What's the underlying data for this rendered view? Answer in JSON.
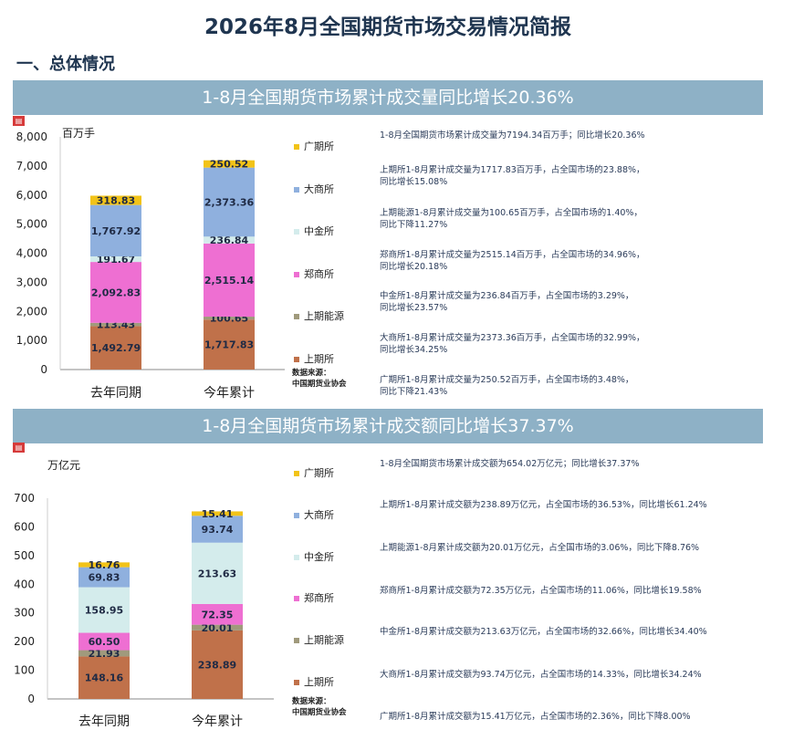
{
  "page": {
    "title": "2026年8月全国期货市场交易情况简报",
    "section": "一、总体情况",
    "doc_icon": "pdf"
  },
  "panels": [
    {
      "banner": "1-8月全国期货市场累计成交量同比增长20.36%",
      "unit": "百万手",
      "legend": [
        "广期所",
        "大商所",
        "中金所",
        "郑商所",
        "上期能源",
        "上期所"
      ],
      "source": [
        "数据来源：",
        "中国期货业协会"
      ],
      "notes": [
        [
          "1-8月全国期货市场累计成交量为7194.34百万手；同比增长20.36%"
        ],
        [
          "上期所1-8月累计成交量为1717.83百万手，占全国市场的23.88%，",
          "同比增长15.08%"
        ],
        [
          "上期能源1-8月累计成交量为100.65百万手，占全国市场的1.40%，",
          "同比下降11.27%"
        ],
        [
          "郑商所1-8月累计成交量为2515.14百万手，占全国市场的34.96%，",
          "同比增长20.18%"
        ],
        [
          "中金所1-8月累计成交量为236.84百万手，占全国市场的3.29%，",
          "同比增长23.57%"
        ],
        [
          "大商所1-8月累计成交量为2373.36百万手，占全国市场的32.99%，",
          "同比增长34.25%"
        ],
        [
          "广期所1-8月累计成交量为250.52百万手，占全国市场的3.48%，",
          "同比下降21.43%"
        ]
      ]
    },
    {
      "banner": "1-8月全国期货市场累计成交额同比增长37.37%",
      "unit": "万亿元",
      "legend": [
        "广期所",
        "大商所",
        "中金所",
        "郑商所",
        "上期能源",
        "上期所"
      ],
      "source": [
        "数据来源：",
        "中国期货业协会"
      ],
      "notes": [
        [
          "1-8月全国期货市场累计成交额为654.02万亿元；同比增长37.37%"
        ],
        [
          "上期所1-8月累计成交额为238.89万亿元，占全国市场的36.53%，同比增长61.24%"
        ],
        [
          "上期能源1-8月累计成交额为20.01万亿元，占全国市场的3.06%，同比下降8.76%"
        ],
        [
          "郑商所1-8月累计成交额为72.35万亿元，占全国市场的11.06%，同比增长19.58%"
        ],
        [
          "中金所1-8月累计成交额为213.63万亿元，占全国市场的32.66%，同比增长34.40%"
        ],
        [
          "大商所1-8月累计成交额为93.74万亿元，占全国市场的14.33%，同比增长34.24%"
        ],
        [
          "广期所1-8月累计成交额为15.41万亿元，占全国市场的2.36%，同比下降8.00%"
        ]
      ]
    }
  ],
  "colors": {
    "上期所": "#c0714a",
    "上期能源": "#a09a7c",
    "郑商所": "#ee6fd2",
    "中金所": "#d4ecec",
    "大商所": "#8fb0de",
    "广期所": "#f2c318"
  },
  "chart_data": [
    {
      "type": "bar",
      "stacked": true,
      "categories": [
        "去年同期",
        "今年累计"
      ],
      "ylim": [
        0,
        8000
      ],
      "yticks": [
        0,
        1000,
        2000,
        3000,
        4000,
        5000,
        6000,
        7000,
        8000
      ],
      "ytick_labels": [
        "0",
        "1,000",
        "2,000",
        "3,000",
        "4,000",
        "5,000",
        "6,000",
        "7,000",
        "8,000"
      ],
      "grid": false,
      "legend_position": "right",
      "series": [
        {
          "name": "上期所",
          "values": [
            1492.79,
            1717.83
          ],
          "labels": [
            "1,492.79",
            "1,717.83"
          ]
        },
        {
          "name": "上期能源",
          "values": [
            113.43,
            100.65
          ],
          "labels": [
            "113.43",
            "100.65"
          ]
        },
        {
          "name": "郑商所",
          "values": [
            2092.83,
            2515.14
          ],
          "labels": [
            "2,092.83",
            "2,515.14"
          ]
        },
        {
          "name": "中金所",
          "values": [
            191.67,
            236.84
          ],
          "labels": [
            "191.67",
            "236.84"
          ]
        },
        {
          "name": "大商所",
          "values": [
            1767.92,
            2373.36
          ],
          "labels": [
            "1,767.92",
            "2,373.36"
          ]
        },
        {
          "name": "广期所",
          "values": [
            318.83,
            250.52
          ],
          "labels": [
            "318.83",
            "250.52"
          ]
        }
      ]
    },
    {
      "type": "bar",
      "stacked": true,
      "categories": [
        "去年同期",
        "今年累计"
      ],
      "ylim": [
        0,
        700
      ],
      "yticks": [
        0,
        100,
        200,
        300,
        400,
        500,
        600,
        700
      ],
      "ytick_labels": [
        "0",
        "100",
        "200",
        "300",
        "400",
        "500",
        "600",
        "700"
      ],
      "grid": false,
      "legend_position": "right",
      "series": [
        {
          "name": "上期所",
          "values": [
            148.16,
            238.89
          ],
          "labels": [
            "148.16",
            "238.89"
          ]
        },
        {
          "name": "上期能源",
          "values": [
            21.93,
            20.01
          ],
          "labels": [
            "21.93",
            "20.01"
          ]
        },
        {
          "name": "郑商所",
          "values": [
            60.5,
            72.35
          ],
          "labels": [
            "60.50",
            "72.35"
          ]
        },
        {
          "name": "中金所",
          "values": [
            158.95,
            213.63
          ],
          "labels": [
            "158.95",
            "213.63"
          ]
        },
        {
          "name": "大商所",
          "values": [
            69.83,
            93.74
          ],
          "labels": [
            "69.83",
            "93.74"
          ]
        },
        {
          "name": "广期所",
          "values": [
            16.76,
            15.41
          ],
          "labels": [
            "16.76",
            "15.41"
          ]
        }
      ]
    }
  ]
}
